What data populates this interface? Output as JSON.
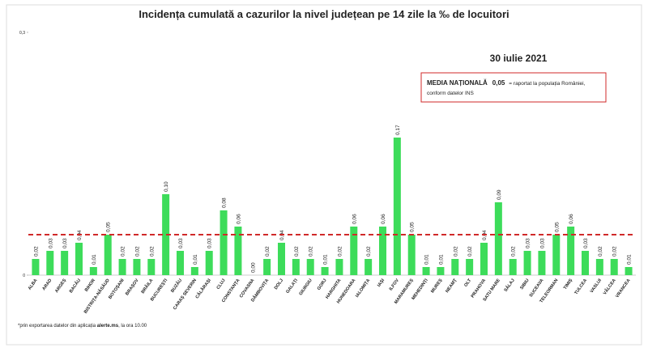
{
  "chart_data": {
    "type": "bar",
    "title": "Incidența cumulată a cazurilor la nivel județean pe 14 zile   la ‰ de locuitori",
    "subtitle": "30 iulie 2021",
    "categories": [
      "ALBA",
      "ARAD",
      "ARGEȘ",
      "BACĂU",
      "BIHOR",
      "BISTRIȚA-NĂSĂUD",
      "BOTOȘANI",
      "BRAȘOV",
      "BRĂILA",
      "BUCUREȘTI",
      "BUZĂU",
      "CARAȘ SEVERIN",
      "CĂLĂRAȘI",
      "CLUJ",
      "CONSTANȚA",
      "COVASNA",
      "DÂMBOVIȚA",
      "DOLJ",
      "GALAȚI",
      "GIURGIU",
      "GORJ",
      "HARGHITA",
      "HUNEDOARA",
      "IALOMIȚA",
      "IAȘI",
      "ILFOV",
      "MARAMUREȘ",
      "MEHEDINȚI",
      "MUREȘ",
      "NEAMȚ",
      "OLT",
      "PRAHOVA",
      "SATU MARE",
      "SĂLAJ",
      "SIBIU",
      "SUCEAVA",
      "TELEORMAN",
      "TIMIȘ",
      "TULCEA",
      "VASLUI",
      "VÂLCEA",
      "VRANCEA"
    ],
    "values": [
      0.02,
      0.03,
      0.03,
      0.04,
      0.01,
      0.05,
      0.02,
      0.02,
      0.02,
      0.1,
      0.03,
      0.01,
      0.03,
      0.08,
      0.06,
      0.0,
      0.02,
      0.04,
      0.02,
      0.02,
      0.01,
      0.02,
      0.06,
      0.02,
      0.06,
      0.17,
      0.05,
      0.01,
      0.01,
      0.02,
      0.02,
      0.04,
      0.09,
      0.02,
      0.03,
      0.03,
      0.05,
      0.06,
      0.03,
      0.02,
      0.02,
      0.01
    ],
    "value_labels": [
      "0,02",
      "0,03",
      "0,03",
      "0,04",
      "0,01",
      "0,05",
      "0,02",
      "0,02",
      "0,02",
      "0,10",
      "0,03",
      "0,01",
      "0,03",
      "0,08",
      "0,06",
      "0,00",
      "0,02",
      "0,04",
      "0,02",
      "0,02",
      "0,01",
      "0,02",
      "0,06",
      "0,02",
      "0,06",
      "0,17",
      "0,05",
      "0,01",
      "0,01",
      "0,02",
      "0,02",
      "0,04",
      "0,09",
      "0,02",
      "0,03",
      "0,03",
      "0,05",
      "0,06",
      "0,03",
      "0,02",
      "0,02",
      "0,01"
    ],
    "color": "#3ddc5a",
    "ylim": [
      0,
      0.3
    ],
    "yticks": [
      0,
      {
        "value": 0.3,
        "label": "0,3"
      }
    ],
    "reference_line": {
      "value": 0.05,
      "label": "0,05",
      "color": "#d02a2a",
      "title": "MEDIA NAȚIONALĂ",
      "description": [
        "= raportat la populația României,",
        "conform datelor INS"
      ]
    },
    "footnote": [
      "*prin exportarea datelor din aplicația ",
      "alerte.ms",
      ", la ora 10.00"
    ]
  }
}
